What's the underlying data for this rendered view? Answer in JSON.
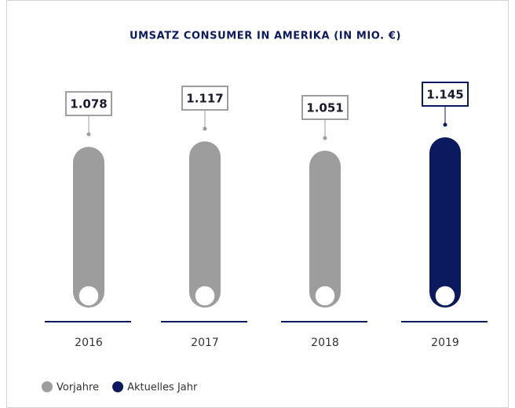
{
  "chart_data": {
    "type": "bar",
    "title": "UMSATZ CONSUMER IN AMERIKA (IN MIO. €)",
    "categories": [
      "2016",
      "2017",
      "2018",
      "2019"
    ],
    "values": [
      1078,
      1117,
      1051,
      1145
    ],
    "value_labels": [
      "1.078",
      "1.117",
      "1.051",
      "1.145"
    ],
    "colors": [
      "#9d9d9d",
      "#9d9d9d",
      "#9d9d9d",
      "#0b1a5e"
    ],
    "legend": [
      {
        "name": "Vorjahre",
        "color": "#9d9d9d"
      },
      {
        "name": "Aktuelles Jahr",
        "color": "#0b1a5e"
      }
    ]
  }
}
